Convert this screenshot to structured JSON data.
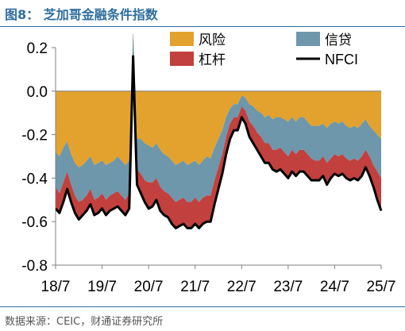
{
  "figure": {
    "title": "图8：  芝加哥金融条件指数",
    "source": "数据来源：CEIC，财通证券研究所"
  },
  "colors": {
    "risk": "#E2A22D",
    "credit": "#6E97AC",
    "leverage": "#C2413F",
    "nfci": "#000000",
    "title": "#2E6E9E"
  },
  "chart_data": {
    "type": "area",
    "stacking": "negative components stacked below zero",
    "x_tick_labels": [
      "18/7",
      "19/7",
      "20/7",
      "21/7",
      "22/7",
      "23/7",
      "24/7",
      "25/7"
    ],
    "y_ticks": [
      0.2,
      0.0,
      -0.2,
      -0.4,
      -0.6,
      -0.8
    ],
    "y_tick_labels": [
      "0.2",
      "0.0",
      "-0.2",
      "-0.4",
      "-0.6",
      "-0.8"
    ],
    "ylim": [
      -0.8,
      0.2
    ],
    "xlim": [
      "2018-07",
      "2025-07"
    ],
    "grid": false,
    "legend_position": "top-right",
    "x": [
      "2018-07",
      "2018-08",
      "2018-09",
      "2018-10",
      "2018-11",
      "2018-12",
      "2019-01",
      "2019-02",
      "2019-03",
      "2019-04",
      "2019-05",
      "2019-06",
      "2019-07",
      "2019-08",
      "2019-09",
      "2019-10",
      "2019-11",
      "2019-12",
      "2020-01",
      "2020-02",
      "2020-03",
      "2020-04",
      "2020-05",
      "2020-06",
      "2020-07",
      "2020-08",
      "2020-09",
      "2020-10",
      "2020-11",
      "2020-12",
      "2021-01",
      "2021-02",
      "2021-03",
      "2021-04",
      "2021-05",
      "2021-06",
      "2021-07",
      "2021-08",
      "2021-09",
      "2021-10",
      "2021-11",
      "2021-12",
      "2022-01",
      "2022-02",
      "2022-03",
      "2022-04",
      "2022-05",
      "2022-06",
      "2022-07",
      "2022-08",
      "2022-09",
      "2022-10",
      "2022-11",
      "2022-12",
      "2023-01",
      "2023-02",
      "2023-03",
      "2023-04",
      "2023-05",
      "2023-06",
      "2023-07",
      "2023-08",
      "2023-09",
      "2023-10",
      "2023-11",
      "2023-12",
      "2024-01",
      "2024-02",
      "2024-03",
      "2024-04",
      "2024-05",
      "2024-06",
      "2024-07",
      "2024-08",
      "2024-09",
      "2024-10",
      "2024-11",
      "2024-12",
      "2025-01",
      "2025-02",
      "2025-03",
      "2025-04",
      "2025-05",
      "2025-06",
      "2025-07"
    ],
    "series": [
      {
        "name": "风险",
        "color_key": "risk",
        "values": [
          -0.28,
          -0.3,
          -0.26,
          -0.23,
          -0.29,
          -0.33,
          -0.35,
          -0.34,
          -0.32,
          -0.3,
          -0.34,
          -0.33,
          -0.32,
          -0.34,
          -0.33,
          -0.32,
          -0.3,
          -0.32,
          -0.34,
          -0.32,
          0.28,
          -0.22,
          -0.22,
          -0.24,
          -0.25,
          -0.26,
          -0.24,
          -0.27,
          -0.29,
          -0.3,
          -0.32,
          -0.34,
          -0.33,
          -0.32,
          -0.34,
          -0.33,
          -0.32,
          -0.34,
          -0.32,
          -0.3,
          -0.31,
          -0.26,
          -0.22,
          -0.18,
          -0.12,
          -0.08,
          -0.06,
          -0.06,
          -0.02,
          -0.03,
          -0.06,
          -0.07,
          -0.09,
          -0.1,
          -0.12,
          -0.11,
          -0.13,
          -0.12,
          -0.12,
          -0.13,
          -0.14,
          -0.12,
          -0.14,
          -0.12,
          -0.12,
          -0.14,
          -0.16,
          -0.16,
          -0.16,
          -0.15,
          -0.17,
          -0.15,
          -0.14,
          -0.15,
          -0.14,
          -0.16,
          -0.17,
          -0.16,
          -0.17,
          -0.15,
          -0.13,
          -0.16,
          -0.18,
          -0.2,
          -0.22
        ]
      },
      {
        "name": "信贷",
        "color_key": "credit",
        "values": [
          -0.16,
          -0.17,
          -0.16,
          -0.14,
          -0.14,
          -0.15,
          -0.16,
          -0.16,
          -0.16,
          -0.15,
          -0.16,
          -0.16,
          -0.15,
          -0.16,
          -0.15,
          -0.15,
          -0.16,
          -0.16,
          -0.16,
          -0.15,
          -0.1,
          -0.14,
          -0.16,
          -0.17,
          -0.17,
          -0.16,
          -0.16,
          -0.17,
          -0.17,
          -0.17,
          -0.17,
          -0.17,
          -0.17,
          -0.17,
          -0.17,
          -0.18,
          -0.17,
          -0.17,
          -0.17,
          -0.18,
          -0.17,
          -0.15,
          -0.13,
          -0.11,
          -0.09,
          -0.07,
          -0.06,
          -0.06,
          -0.05,
          -0.06,
          -0.08,
          -0.09,
          -0.1,
          -0.11,
          -0.12,
          -0.13,
          -0.14,
          -0.15,
          -0.14,
          -0.15,
          -0.16,
          -0.15,
          -0.15,
          -0.15,
          -0.15,
          -0.15,
          -0.15,
          -0.16,
          -0.16,
          -0.15,
          -0.16,
          -0.16,
          -0.15,
          -0.15,
          -0.15,
          -0.15,
          -0.15,
          -0.15,
          -0.15,
          -0.15,
          -0.14,
          -0.14,
          -0.16,
          -0.17,
          -0.18
        ]
      },
      {
        "name": "杠杆",
        "color_key": "leverage",
        "values": [
          -0.1,
          -0.09,
          -0.09,
          -0.08,
          -0.08,
          -0.08,
          -0.08,
          -0.07,
          -0.07,
          -0.07,
          -0.07,
          -0.07,
          -0.07,
          -0.07,
          -0.07,
          -0.07,
          -0.07,
          -0.07,
          -0.07,
          -0.07,
          -0.02,
          -0.07,
          -0.09,
          -0.1,
          -0.12,
          -0.11,
          -0.1,
          -0.11,
          -0.11,
          -0.11,
          -0.12,
          -0.12,
          -0.12,
          -0.12,
          -0.12,
          -0.12,
          -0.12,
          -0.12,
          -0.12,
          -0.12,
          -0.12,
          -0.11,
          -0.1,
          -0.09,
          -0.08,
          -0.07,
          -0.06,
          -0.06,
          -0.05,
          -0.06,
          -0.07,
          -0.08,
          -0.08,
          -0.09,
          -0.09,
          -0.09,
          -0.09,
          -0.1,
          -0.1,
          -0.1,
          -0.1,
          -0.1,
          -0.1,
          -0.1,
          -0.1,
          -0.1,
          -0.1,
          -0.09,
          -0.09,
          -0.09,
          -0.1,
          -0.09,
          -0.09,
          -0.09,
          -0.09,
          -0.09,
          -0.09,
          -0.09,
          -0.09,
          -0.09,
          -0.08,
          -0.09,
          -0.1,
          -0.13,
          -0.15
        ]
      },
      {
        "name": "NFCI",
        "color_key": "nfci",
        "type": "line",
        "values": [
          -0.54,
          -0.56,
          -0.51,
          -0.45,
          -0.51,
          -0.56,
          -0.59,
          -0.57,
          -0.55,
          -0.52,
          -0.57,
          -0.56,
          -0.54,
          -0.57,
          -0.55,
          -0.54,
          -0.53,
          -0.55,
          -0.57,
          -0.54,
          0.16,
          -0.43,
          -0.47,
          -0.51,
          -0.54,
          -0.53,
          -0.5,
          -0.55,
          -0.57,
          -0.58,
          -0.61,
          -0.63,
          -0.62,
          -0.61,
          -0.63,
          -0.63,
          -0.61,
          -0.63,
          -0.61,
          -0.6,
          -0.6,
          -0.52,
          -0.45,
          -0.38,
          -0.29,
          -0.22,
          -0.18,
          -0.18,
          -0.12,
          -0.15,
          -0.21,
          -0.24,
          -0.27,
          -0.3,
          -0.33,
          -0.33,
          -0.36,
          -0.37,
          -0.36,
          -0.38,
          -0.4,
          -0.37,
          -0.39,
          -0.37,
          -0.37,
          -0.39,
          -0.41,
          -0.41,
          -0.41,
          -0.39,
          -0.43,
          -0.4,
          -0.38,
          -0.39,
          -0.38,
          -0.4,
          -0.41,
          -0.4,
          -0.41,
          -0.39,
          -0.35,
          -0.39,
          -0.44,
          -0.5,
          -0.55
        ]
      }
    ]
  }
}
